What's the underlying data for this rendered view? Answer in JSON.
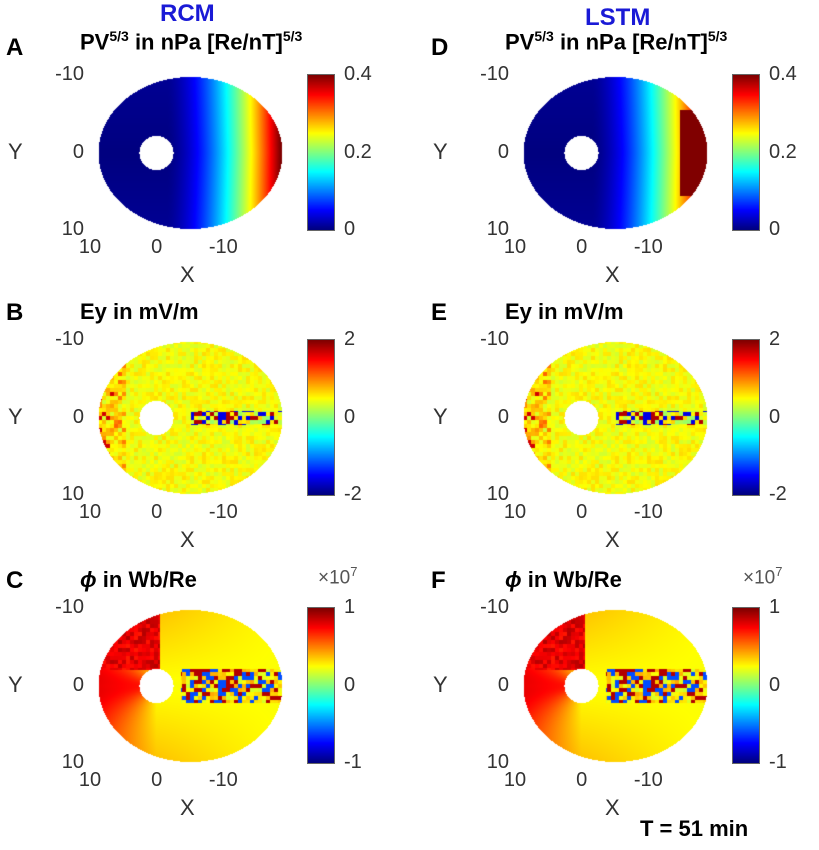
{
  "figure": {
    "model_labels": [
      "RCM",
      "LSTM"
    ],
    "footer": "T = 51 min"
  },
  "colors": {
    "model_label": "#1a1ad6",
    "colormap": "jet"
  },
  "chart_data": [
    {
      "id": "A",
      "type": "heatmap",
      "model": "RCM",
      "title_html": "PV<sup>5/3</sup> in nPa [Re/nT]<sup>5/3</sup>",
      "xlabel": "X",
      "ylabel": "Y",
      "xticks": [
        "10",
        "0",
        "-10"
      ],
      "yticks": [
        "-10",
        "0",
        "10"
      ],
      "xlim": [
        10,
        -20
      ],
      "ylim": [
        -10,
        10
      ],
      "clim": [
        0,
        0.4
      ],
      "cticks": [
        "0",
        "0.2",
        "0.4"
      ],
      "multiplier": "",
      "field": "pressure"
    },
    {
      "id": "B",
      "type": "heatmap",
      "model": "RCM",
      "title_html": "Ey in mV/m",
      "xlabel": "X",
      "ylabel": "Y",
      "xticks": [
        "10",
        "0",
        "-10"
      ],
      "yticks": [
        "-10",
        "0",
        "10"
      ],
      "xlim": [
        10,
        -20
      ],
      "ylim": [
        -10,
        10
      ],
      "clim": [
        -2,
        2
      ],
      "cticks": [
        "-2",
        "0",
        "2"
      ],
      "multiplier": "",
      "field": "efield"
    },
    {
      "id": "C",
      "type": "heatmap",
      "model": "RCM",
      "title_html": "<i>ϕ</i> in Wb/Re",
      "xlabel": "X",
      "ylabel": "Y",
      "xticks": [
        "10",
        "0",
        "-10"
      ],
      "yticks": [
        "-10",
        "0",
        "10"
      ],
      "xlim": [
        10,
        -20
      ],
      "ylim": [
        -10,
        10
      ],
      "clim": [
        -1,
        1
      ],
      "cticks": [
        "-1",
        "0",
        "1"
      ],
      "multiplier": "×10<sup>7</sup>",
      "field": "potential"
    },
    {
      "id": "D",
      "type": "heatmap",
      "model": "LSTM",
      "title_html": "PV<sup>5/3</sup> in nPa [Re/nT]<sup>5/3</sup>",
      "xlabel": "X",
      "ylabel": "Y",
      "xticks": [
        "10",
        "0",
        "-10"
      ],
      "yticks": [
        "-10",
        "0",
        "10"
      ],
      "xlim": [
        10,
        -20
      ],
      "ylim": [
        -10,
        10
      ],
      "clim": [
        0,
        0.4
      ],
      "cticks": [
        "0",
        "0.2",
        "0.4"
      ],
      "multiplier": "",
      "field": "pressure_lstm"
    },
    {
      "id": "E",
      "type": "heatmap",
      "model": "LSTM",
      "title_html": "Ey in mV/m",
      "xlabel": "X",
      "ylabel": "Y",
      "xticks": [
        "10",
        "0",
        "-10"
      ],
      "yticks": [
        "-10",
        "0",
        "10"
      ],
      "xlim": [
        10,
        -20
      ],
      "ylim": [
        -10,
        10
      ],
      "clim": [
        -2,
        2
      ],
      "cticks": [
        "-2",
        "0",
        "2"
      ],
      "multiplier": "",
      "field": "efield"
    },
    {
      "id": "F",
      "type": "heatmap",
      "model": "LSTM",
      "title_html": "<i>ϕ</i> in Wb/Re",
      "xlabel": "X",
      "ylabel": "Y",
      "xticks": [
        "10",
        "0",
        "-10"
      ],
      "yticks": [
        "-10",
        "0",
        "10"
      ],
      "xlim": [
        10,
        -20
      ],
      "ylim": [
        -10,
        10
      ],
      "clim": [
        -1,
        1
      ],
      "cticks": [
        "-1",
        "0",
        "1"
      ],
      "multiplier": "×10<sup>7</sup>",
      "field": "potential"
    }
  ]
}
